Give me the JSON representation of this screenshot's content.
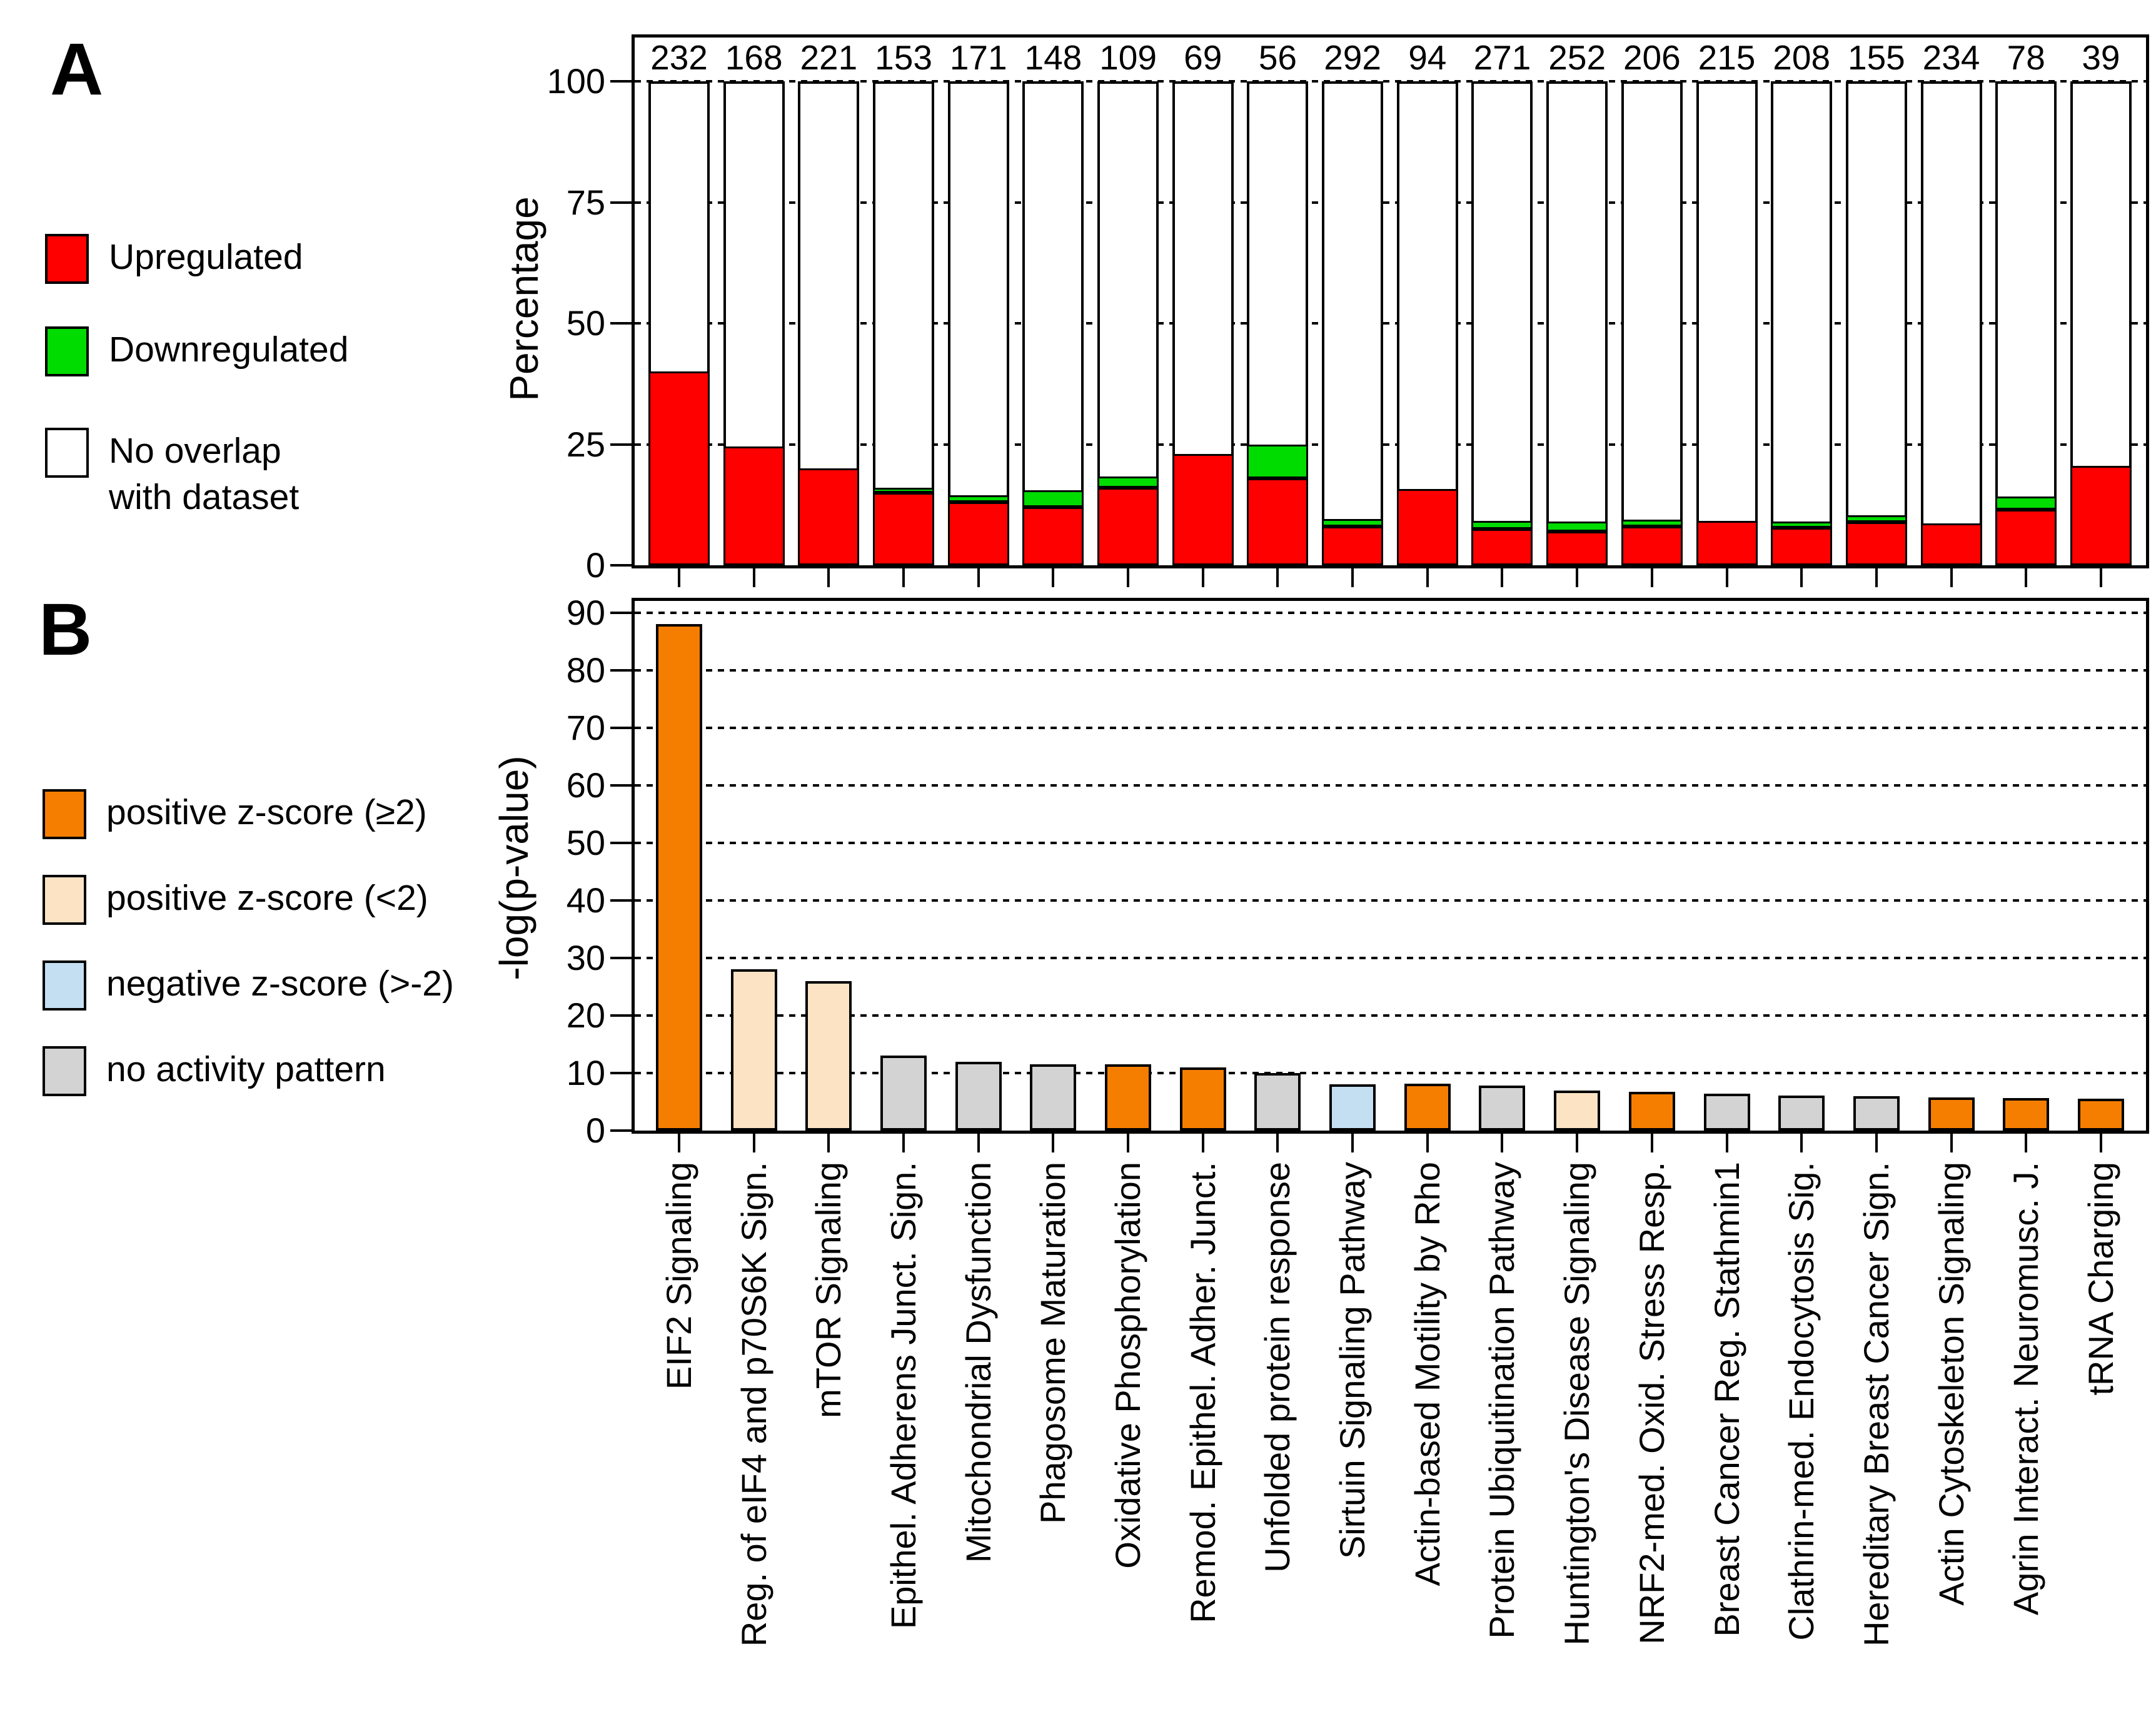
{
  "figure": {
    "panel_a_label": "A",
    "panel_b_label": "B",
    "legend_a": [
      {
        "label": "Upregulated",
        "color": "#FF0000"
      },
      {
        "label": "Downregulated",
        "color": "#00DC00"
      },
      {
        "label_line1": "No overlap",
        "label_line2": "with dataset",
        "color": "#FFFFFF"
      }
    ],
    "legend_b": [
      {
        "label": "positive z-score (≥2)",
        "color": "#F57E00"
      },
      {
        "label": "positive z-score (<2)",
        "color": "#FBE3C4"
      },
      {
        "label": "negative z-score (>-2)",
        "color": "#C5DFF2"
      },
      {
        "label": "no activity pattern",
        "color": "#D3D3D3"
      }
    ]
  },
  "chart_data": [
    {
      "id": "A",
      "type": "bar",
      "stacked": true,
      "title": "",
      "xlabel": "",
      "ylabel": "Percentage",
      "ylim": [
        0,
        100
      ],
      "yticks": [
        0,
        25,
        50,
        75,
        100
      ],
      "grid": "dashed horizontal",
      "legend_position": "left",
      "categories": [
        "EIF2 Signaling",
        "Reg. of eIF4 and p70S6K Sign.",
        "mTOR Signaling",
        "Epithel. Adherens Junct. Sign.",
        "Mitochondrial Dysfunction",
        "Phagosome Maturation",
        "Oxidative Phosphorylation",
        "Remod. Epithel. Adher. Junct.",
        "Unfolded protein response",
        "Sirtuin Signaling Pathway",
        "Actin-based Motility by Rho",
        "Protein Ubiquitination Pathway",
        "Huntington's Disease Signaling",
        "NRF2-med. Oxid. Stress Resp.",
        "Breast Cancer Reg. Stathmin1",
        "Clathrin-med. Endocytosis Sig.",
        "Hereditary Breast Cancer Sign.",
        "Actin Cytoskeleton Signaling",
        "Agrin Interact. Neuromusc. J.",
        "tRNA Charging"
      ],
      "counts_above_bars": [
        232,
        168,
        221,
        153,
        171,
        148,
        109,
        69,
        56,
        292,
        94,
        271,
        252,
        206,
        215,
        208,
        155,
        234,
        78,
        39
      ],
      "series": [
        {
          "name": "Upregulated",
          "color": "#FF0000",
          "values": [
            40,
            24.5,
            20,
            15,
            13,
            12,
            16,
            23,
            18,
            8,
            15.8,
            7.5,
            7,
            8,
            9.2,
            7.7,
            8.9,
            8.6,
            11.5,
            20.5
          ]
        },
        {
          "name": "Downregulated",
          "color": "#00DC00",
          "values": [
            0,
            0,
            0,
            1,
            1.5,
            3.5,
            2.3,
            0,
            7,
            1.5,
            0,
            1.7,
            2,
            1.4,
            0,
            1.3,
            1.4,
            0,
            2.7,
            0
          ]
        },
        {
          "name": "No overlap with dataset",
          "color": "#FFFFFF",
          "values": [
            60,
            75.5,
            80,
            84,
            85.5,
            84.5,
            81.7,
            77,
            75,
            90.5,
            84.2,
            90.8,
            91,
            90.6,
            90.8,
            91,
            89.7,
            91.4,
            85.8,
            79.5
          ]
        }
      ]
    },
    {
      "id": "B",
      "type": "bar",
      "stacked": false,
      "title": "",
      "xlabel": "",
      "ylabel": "-log(p-value)",
      "ylim": [
        0,
        90
      ],
      "yticks": [
        0,
        10,
        20,
        30,
        40,
        50,
        60,
        70,
        80,
        90
      ],
      "grid": "dashed horizontal",
      "legend_position": "left",
      "categories": [
        "EIF2 Signaling",
        "Reg. of eIF4 and p70S6K Sign.",
        "mTOR Signaling",
        "Epithel. Adherens Junct. Sign.",
        "Mitochondrial Dysfunction",
        "Phagosome Maturation",
        "Oxidative Phosphorylation",
        "Remod. Epithel. Adher. Junct.",
        "Unfolded protein response",
        "Sirtuin Signaling Pathway",
        "Actin-based Motility by Rho",
        "Protein Ubiquitination Pathway",
        "Huntington's Disease Signaling",
        "NRF2-med. Oxid. Stress Resp.",
        "Breast Cancer Reg. Stathmin1",
        "Clathrin-med. Endocytosis Sig.",
        "Hereditary Breast Cancer Sign.",
        "Actin Cytoskeleton Signaling",
        "Agrin Interact. Neuromusc. J.",
        "tRNA Charging"
      ],
      "values": [
        88,
        28,
        26,
        13,
        12,
        11.5,
        11.5,
        11,
        10,
        8,
        8.2,
        7.8,
        7,
        6.7,
        6.4,
        6.1,
        6,
        5.8,
        5.6,
        5.5
      ],
      "z_score_category": [
        "positive z-score (≥2)",
        "positive z-score (<2)",
        "positive z-score (<2)",
        "no activity pattern",
        "no activity pattern",
        "no activity pattern",
        "positive z-score (≥2)",
        "positive z-score (≥2)",
        "no activity pattern",
        "negative z-score (>-2)",
        "positive z-score (≥2)",
        "no activity pattern",
        "positive z-score (<2)",
        "positive z-score (≥2)",
        "no activity pattern",
        "no activity pattern",
        "no activity pattern",
        "positive z-score (≥2)",
        "positive z-score (≥2)",
        "positive z-score (≥2)"
      ],
      "legend": [
        {
          "label": "positive z-score (≥2)",
          "color": "#F57E00"
        },
        {
          "label": "positive z-score (<2)",
          "color": "#FBE3C4"
        },
        {
          "label": "negative z-score (>-2)",
          "color": "#C5DFF2"
        },
        {
          "label": "no activity pattern",
          "color": "#D3D3D3"
        }
      ]
    }
  ]
}
